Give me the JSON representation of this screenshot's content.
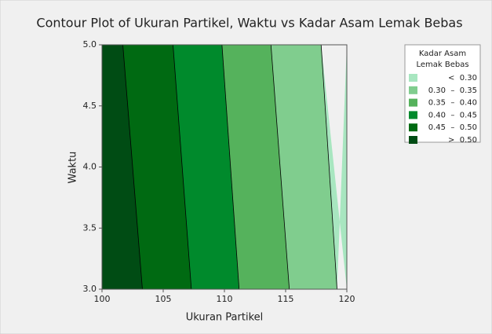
{
  "chart_data": {
    "type": "contour",
    "title": "Contour Plot of  Ukuran Partikel, Waktu vs Kadar Asam Lemak Bebas",
    "x_label": "Ukuran Partikel",
    "y_label": "Waktu",
    "xlim": [
      100,
      120
    ],
    "ylim": [
      3.0,
      5.0
    ],
    "xticks": [
      100,
      105,
      110,
      115,
      120
    ],
    "yticks": [
      {
        "value": 3.0,
        "label": "3.0"
      },
      {
        "value": 3.5,
        "label": "3.5"
      },
      {
        "value": 4.0,
        "label": "4.0"
      },
      {
        "value": 4.5,
        "label": "4.5"
      },
      {
        "value": 5.0,
        "label": "5.0"
      }
    ],
    "contours": [
      {
        "level": 0.5,
        "x": [
          103.3,
          101.7
        ],
        "y": [
          3.0,
          5.0
        ]
      },
      {
        "level": 0.45,
        "x": [
          107.3,
          105.8
        ],
        "y": [
          3.0,
          5.0
        ]
      },
      {
        "level": 0.4,
        "x": [
          111.2,
          109.8
        ],
        "y": [
          3.0,
          5.0
        ]
      },
      {
        "level": 0.35,
        "x": [
          115.3,
          113.8
        ],
        "y": [
          3.0,
          5.0
        ]
      },
      {
        "level": 0.3,
        "x": [
          119.2,
          117.9
        ],
        "y": [
          3.0,
          5.0
        ]
      }
    ],
    "legend": {
      "title_lines": [
        "Kadar Asam",
        "Lemak Bebas"
      ],
      "entries": [
        {
          "label": "<  0.30",
          "color": "#a8e6c0"
        },
        {
          "label": "0.30  –  0.35",
          "color": "#80cd8e"
        },
        {
          "label": "0.35  –  0.40",
          "color": "#55b25c"
        },
        {
          "label": "0.40  –  0.45",
          "color": "#008a2c"
        },
        {
          "label": "0.45  –  0.50",
          "color": "#006a12"
        },
        {
          "label": ">  0.50",
          "color": "#004c14"
        }
      ]
    }
  }
}
